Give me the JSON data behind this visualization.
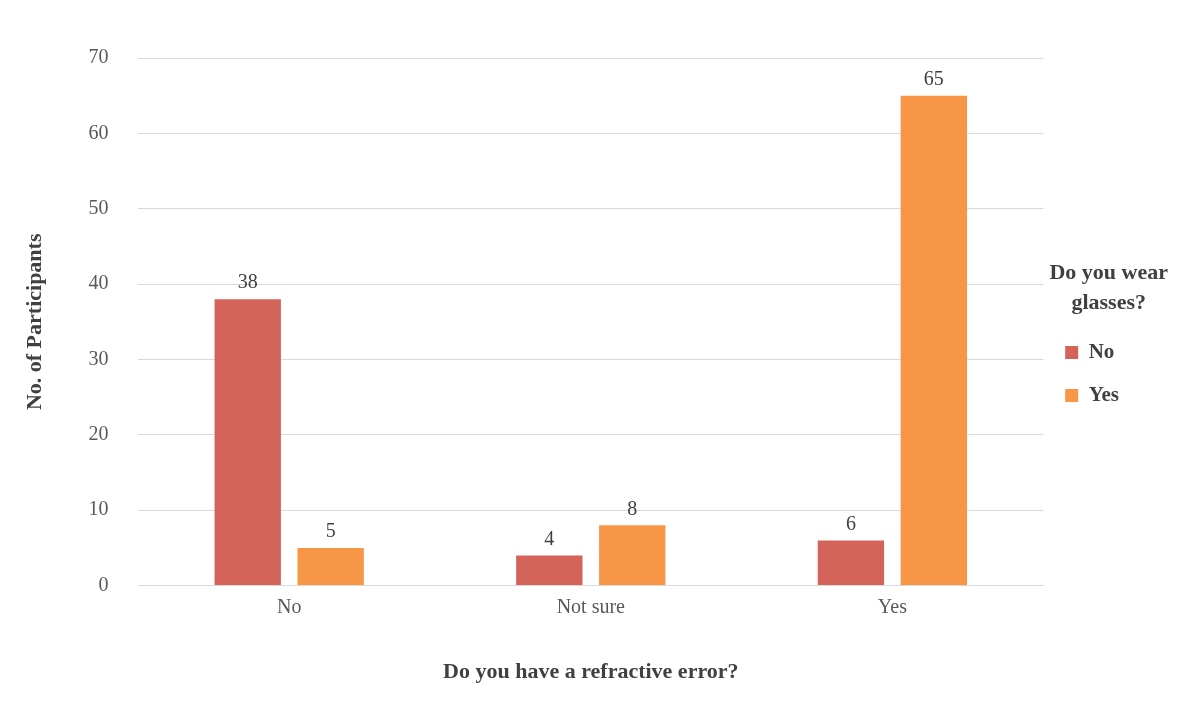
{
  "chart_data": {
    "type": "bar",
    "xlabel": "Do you have a refractive error?",
    "ylabel": "No. of Participants",
    "legend_title": "Do you wear glasses?",
    "categories": [
      "No",
      "Not sure",
      "Yes"
    ],
    "series": [
      {
        "name": "No",
        "color": "#d4635a",
        "values": [
          38,
          4,
          6
        ]
      },
      {
        "name": "Yes",
        "color": "#f79646",
        "values": [
          5,
          8,
          65
        ]
      }
    ],
    "ylim": [
      0,
      70
    ],
    "yticks": [
      0,
      10,
      20,
      30,
      40,
      50,
      60,
      70
    ],
    "grid": "y",
    "legend": "right",
    "data_labels": true
  }
}
